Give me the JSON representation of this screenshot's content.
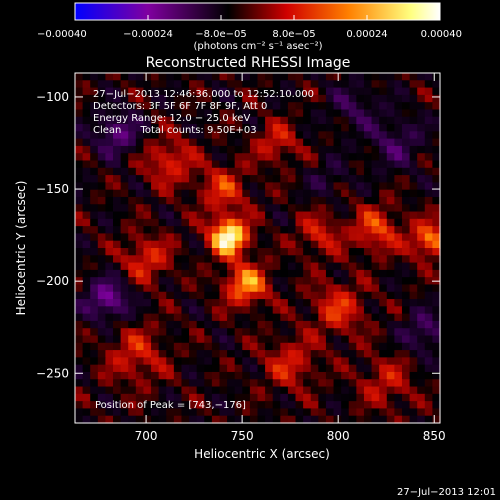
{
  "chart_data": {
    "type": "heatmap",
    "title": "Reconstructed RHESSI Image",
    "xlabel": "Heliocentric X (arcsec)",
    "ylabel": "Heliocentric Y (arcsec)",
    "xlim": [
      663,
      853
    ],
    "ylim": [
      -277,
      -87
    ],
    "xticks": [
      700,
      750,
      800,
      850
    ],
    "yticks": [
      -100,
      -150,
      -200,
      -250
    ],
    "x_tick_labels": [
      "700",
      "750",
      "800",
      "850"
    ],
    "y_tick_labels": [
      "−100",
      "−150",
      "−200",
      "−250"
    ],
    "grid": false,
    "colorbar": {
      "position": "top",
      "min": -0.0004,
      "max": 0.0004,
      "ticks": [
        -0.0004,
        -0.00024,
        -8e-05,
        8e-05,
        0.00024,
        0.0004
      ],
      "tick_labels": [
        "−0.00040",
        "−0.00024",
        "−8.0e−05",
        "8.0e−05",
        "0.00024",
        "0.00040"
      ],
      "units": "(photons cm⁻² s⁻¹ asec⁻²)",
      "colors": [
        "#0000ff",
        "#8000a0",
        "#000000",
        "#d00000",
        "#ff8000",
        "#ffff80",
        "#ffffff"
      ]
    },
    "annotations": [
      "27−Jul−2013 12:46:36.000 to 12:52:10.000",
      "Detectors: 3F 5F 6F 7F 8F 9F, Att 0",
      "Energy Range: 12.0 − 25.0 keV",
      "Clean      Total counts: 9.50E+03"
    ],
    "peak_label": "Position of Peak = [743,−176]",
    "peak": {
      "x": 743,
      "y": -176
    },
    "sources": [
      {
        "x": 743,
        "y": -176,
        "sigma": 7,
        "amp": 0.0004
      },
      {
        "x": 752,
        "y": -202,
        "sigma": 8,
        "amp": 0.00026
      },
      {
        "x": 848,
        "y": -178,
        "sigma": 7,
        "amp": 0.00024
      },
      {
        "x": 820,
        "y": -172,
        "sigma": 9,
        "amp": 0.00018
      },
      {
        "x": 700,
        "y": -188,
        "sigma": 9,
        "amp": 0.00016
      },
      {
        "x": 712,
        "y": -135,
        "sigma": 9,
        "amp": 0.00016
      },
      {
        "x": 768,
        "y": -125,
        "sigma": 8,
        "amp": 0.00014
      },
      {
        "x": 800,
        "y": -215,
        "sigma": 10,
        "amp": 0.00016
      },
      {
        "x": 695,
        "y": -240,
        "sigma": 11,
        "amp": 0.00014
      },
      {
        "x": 775,
        "y": -245,
        "sigma": 10,
        "amp": 0.00014
      },
      {
        "x": 825,
        "y": -255,
        "sigma": 10,
        "amp": 0.00012
      },
      {
        "x": 740,
        "y": -150,
        "sigma": 9,
        "amp": 0.00016
      },
      {
        "x": 790,
        "y": -175,
        "sigma": 8,
        "amp": 0.00014
      },
      {
        "x": 680,
        "y": -210,
        "sigma": 8,
        "amp": -0.00022
      },
      {
        "x": 685,
        "y": -120,
        "sigma": 8,
        "amp": -0.00018
      },
      {
        "x": 830,
        "y": -125,
        "sigma": 10,
        "amp": -0.00012
      },
      {
        "x": 808,
        "y": -105,
        "sigma": 9,
        "amp": -0.0001
      },
      {
        "x": 845,
        "y": -228,
        "sigma": 8,
        "amp": -0.00014
      },
      {
        "x": 795,
        "y": -145,
        "sigma": 7,
        "amp": -8e-05
      }
    ]
  },
  "footer": {
    "timestamp": "27−Jul−2013 12:01"
  }
}
